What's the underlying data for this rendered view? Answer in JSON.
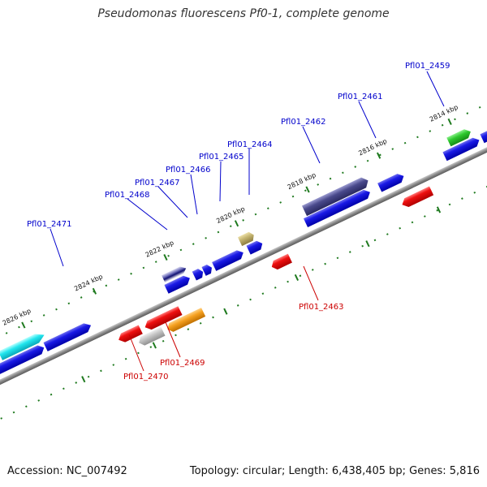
{
  "title": "Pseudomonas fluorescens Pf0-1, complete genome",
  "footer": {
    "accession": "Accession: NC_007492",
    "summary": "Topology: circular; Length: 6,438,405 bp; Genes: 5,816"
  },
  "colors": {
    "forward_label": "#0000cc",
    "reverse_label": "#cc0000",
    "tick": "#1f7a1f",
    "backbone": "#808080"
  },
  "kbp_labels": [
    "2826 kbp",
    "2824 kbp",
    "2822 kbp",
    "2820 kbp",
    "2818 kbp",
    "2816 kbp",
    "2814 kbp"
  ],
  "gene_labels": {
    "forward": [
      "Pfl01_2471",
      "Pfl01_2468",
      "Pfl01_2467",
      "Pfl01_2466",
      "Pfl01_2465",
      "Pfl01_2464",
      "Pfl01_2462",
      "Pfl01_2461",
      "Pfl01_2459"
    ],
    "reverse": [
      "Pfl01_2470",
      "Pfl01_2469",
      "Pfl01_2463"
    ]
  }
}
